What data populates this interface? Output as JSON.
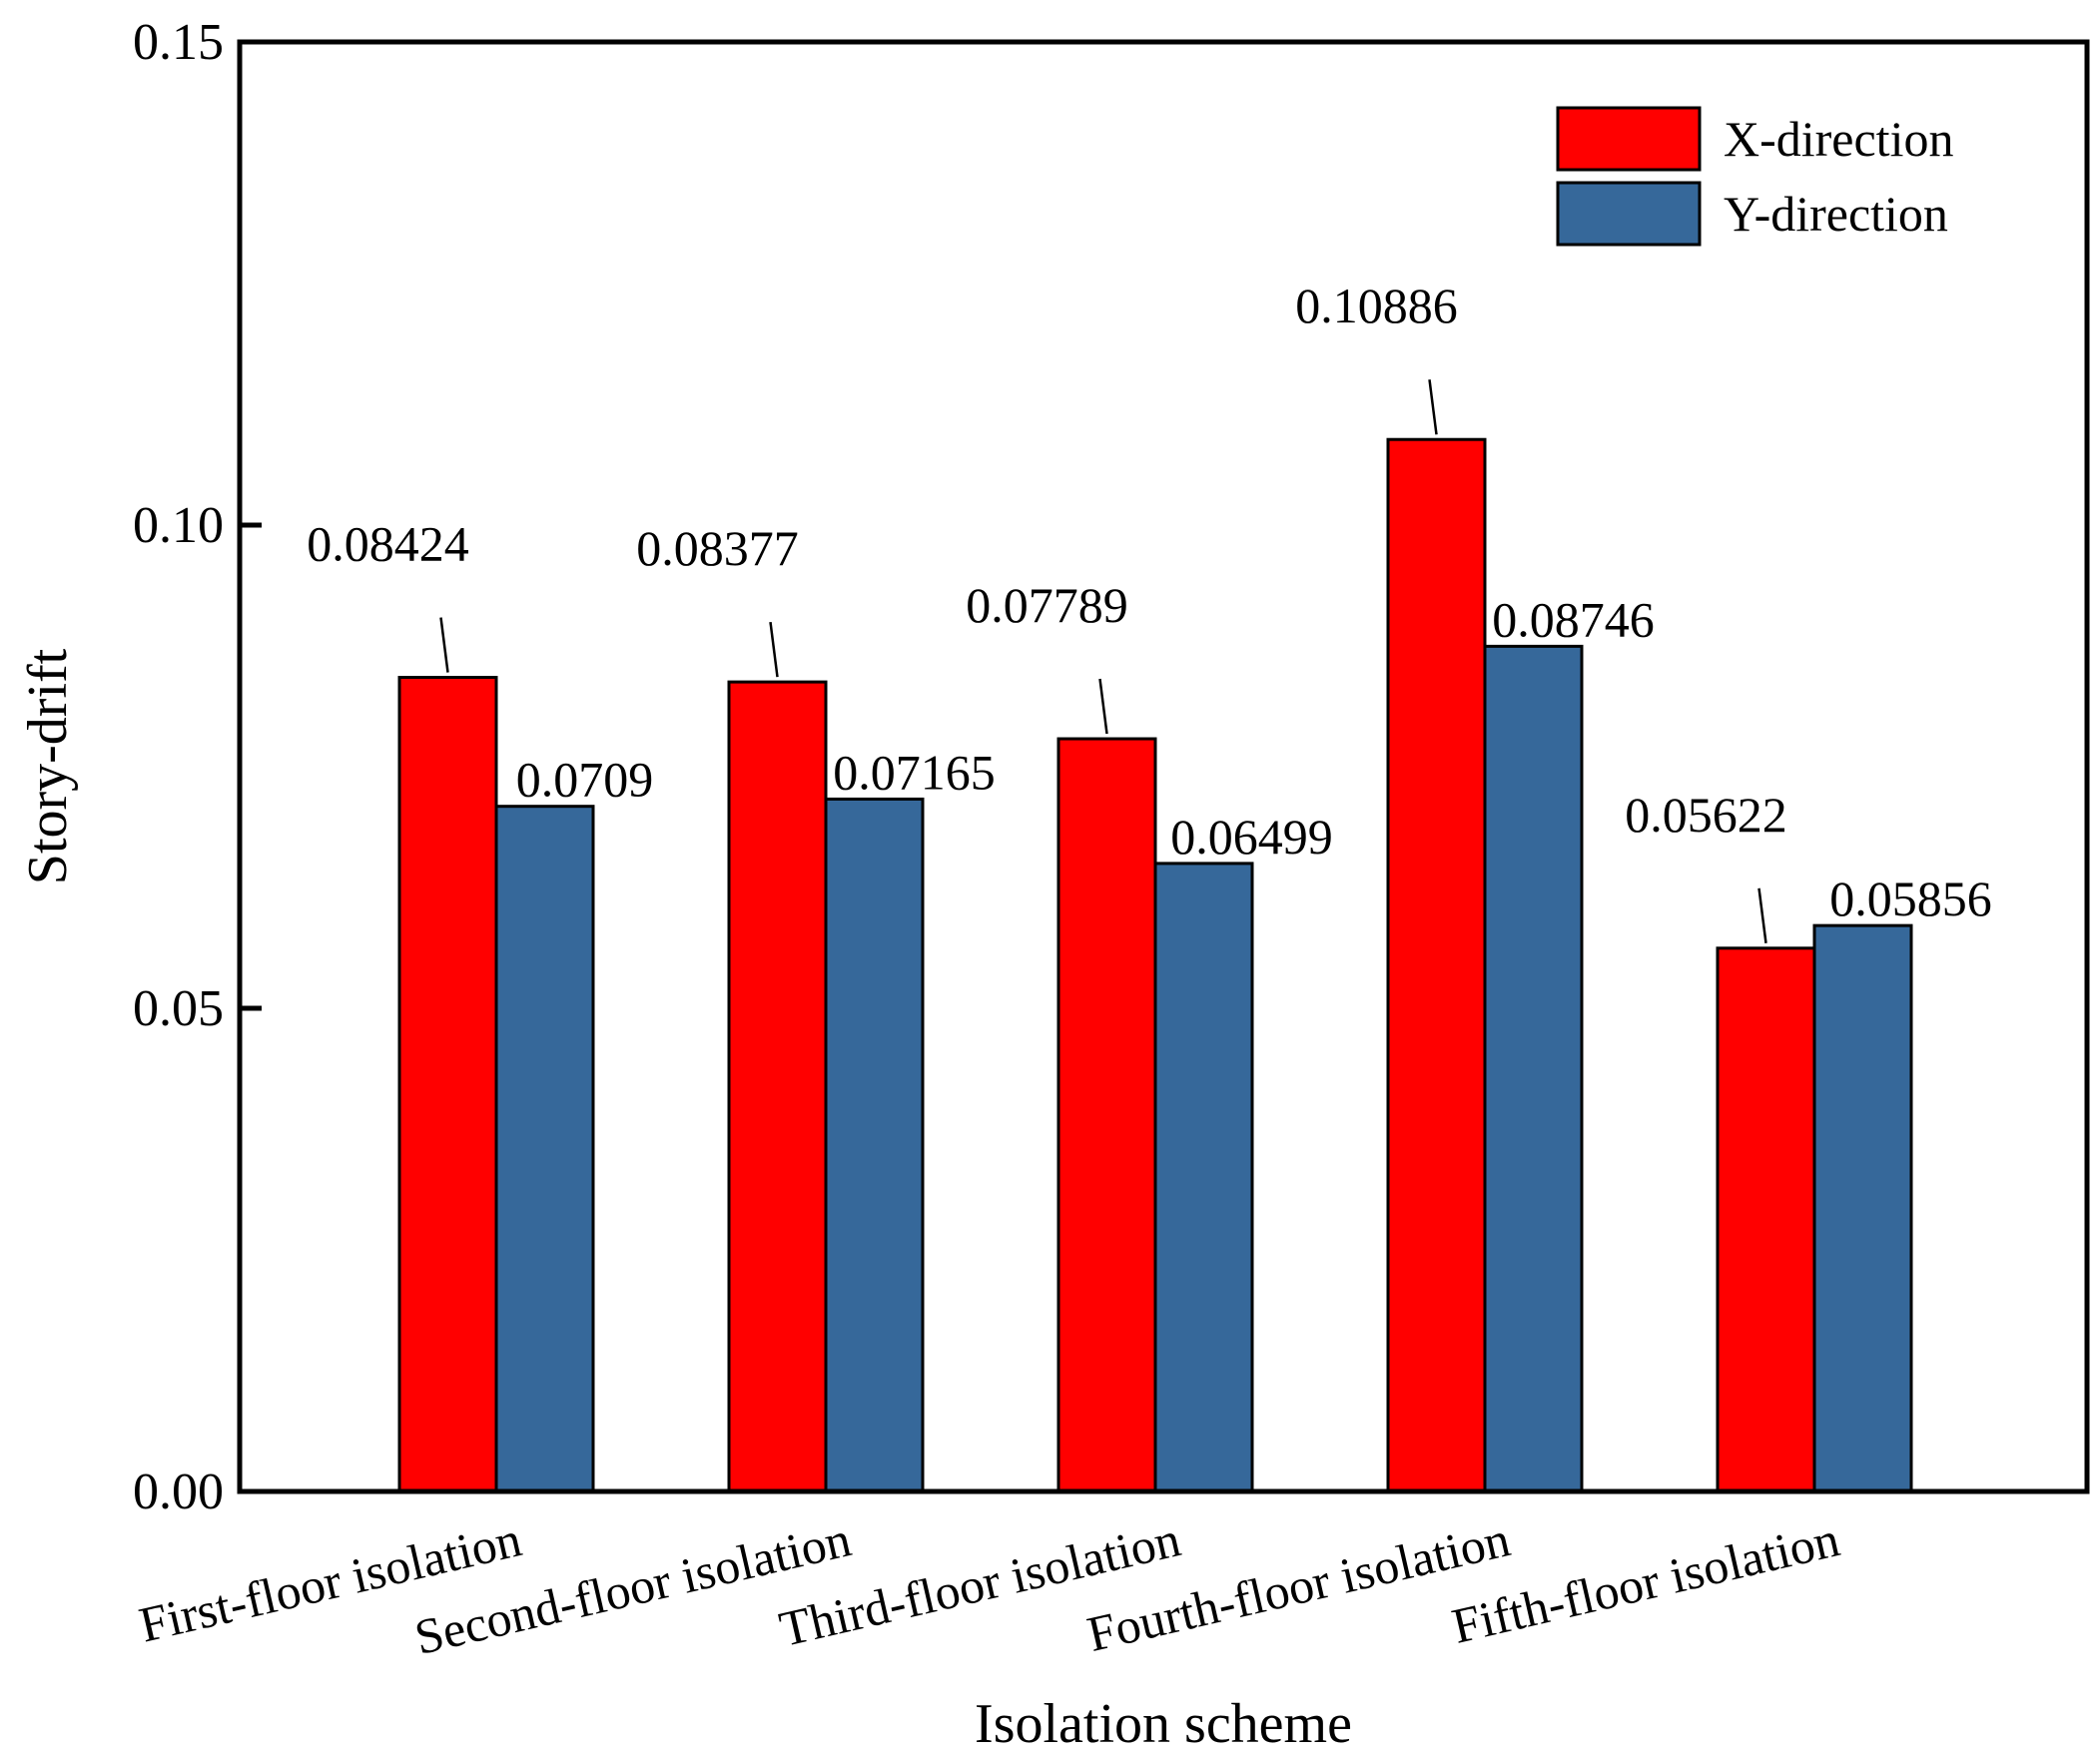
{
  "chart_data": {
    "type": "bar",
    "title": "",
    "xlabel": "Isolation scheme",
    "ylabel": "Story-drift",
    "ylim": [
      0,
      0.15
    ],
    "yticks": [
      "0.00",
      "0.05",
      "0.10",
      "0.15"
    ],
    "grid": false,
    "legend_position": "top-right",
    "categories": [
      "First-floor isolation",
      "Second-floor isolation",
      "Third-floor isolation",
      "Fourth-floor isolation",
      "Fifth-floor isolation"
    ],
    "series": [
      {
        "name": "X-direction",
        "color": "#ff0000",
        "values": [
          0.08424,
          0.08377,
          0.07789,
          0.10886,
          0.05622
        ],
        "labels": [
          "0.08424",
          "0.08377",
          "0.07789",
          "0.10886",
          "0.05622"
        ]
      },
      {
        "name": "Y-direction",
        "color": "#36689a",
        "values": [
          0.0709,
          0.07165,
          0.06499,
          0.08746,
          0.05856
        ],
        "labels": [
          "0.0709",
          "0.07165",
          "0.06499",
          "0.08746",
          "0.05856"
        ]
      }
    ]
  }
}
